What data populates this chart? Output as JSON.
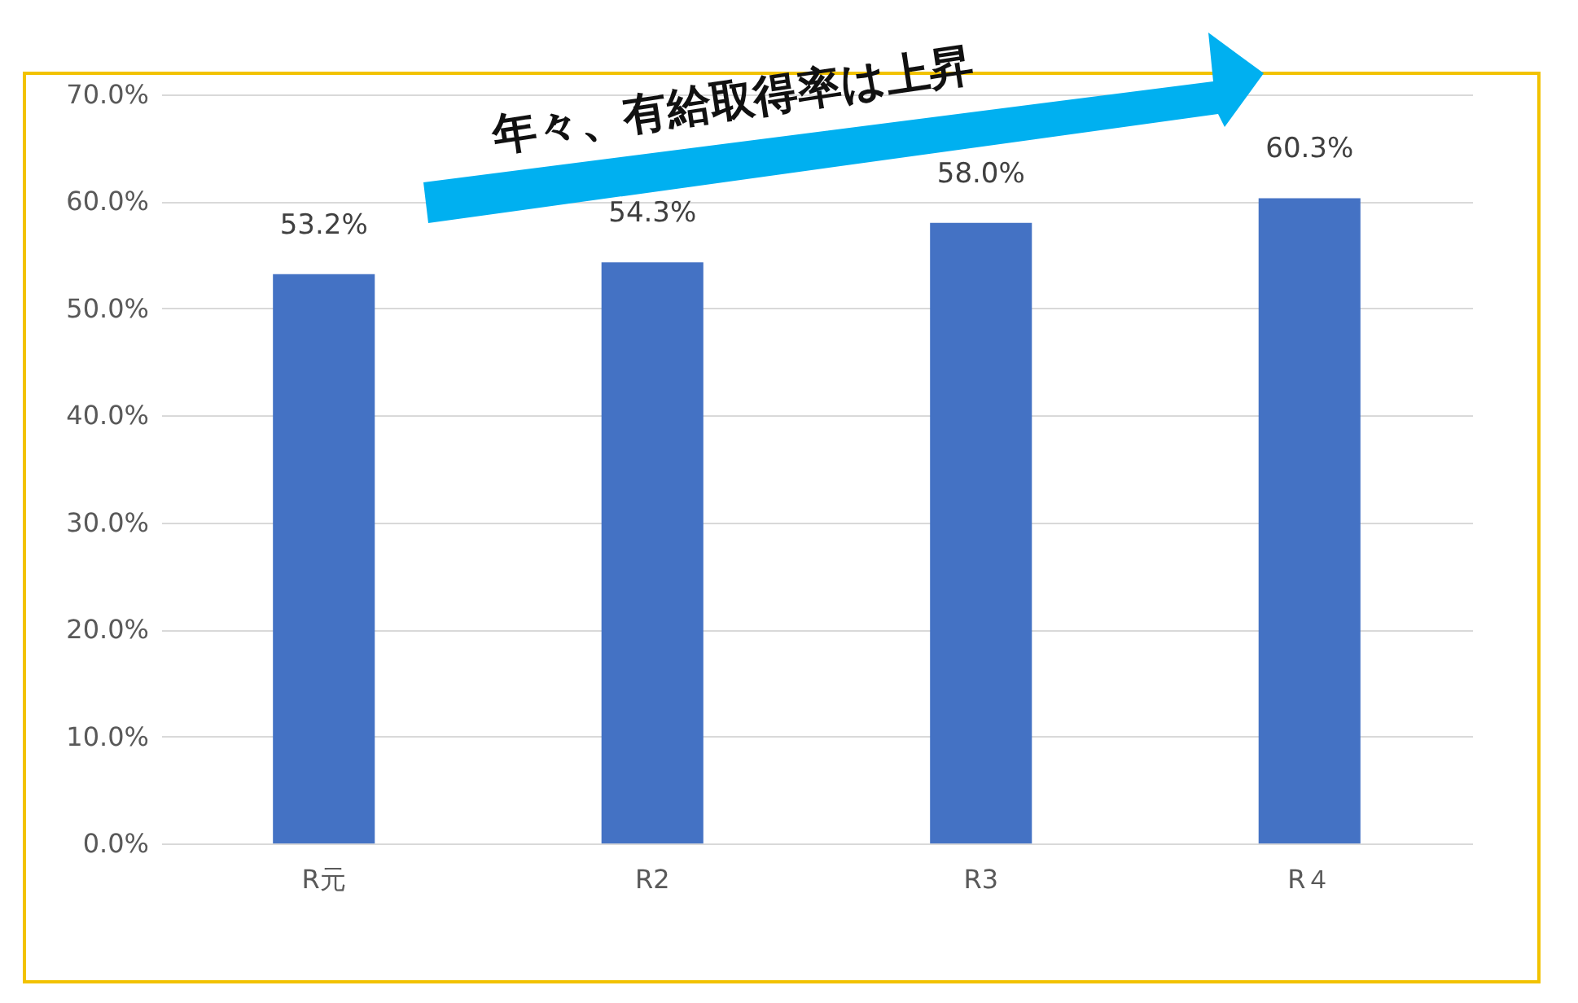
{
  "chart_data": {
    "type": "bar",
    "categories": [
      "R元",
      "R2",
      "R3",
      "R４"
    ],
    "values": [
      53.2,
      54.3,
      58.0,
      60.3
    ],
    "value_labels": [
      "53.2%",
      "54.3%",
      "58.0%",
      "60.3%"
    ],
    "color": "#4472c4",
    "ylim": [
      0,
      70
    ],
    "yticks": [
      {
        "value": 0,
        "label": "0.0%"
      },
      {
        "value": 10,
        "label": "10.0%"
      },
      {
        "value": 20,
        "label": "20.0%"
      },
      {
        "value": 30,
        "label": "30.0%"
      },
      {
        "value": 40,
        "label": "40.0%"
      },
      {
        "value": 50,
        "label": "50.0%"
      },
      {
        "value": 60,
        "label": "60.0%"
      },
      {
        "value": 70,
        "label": "70.0%"
      }
    ],
    "grid": true,
    "annotations": [
      "年々、有給取得率は上昇"
    ]
  }
}
